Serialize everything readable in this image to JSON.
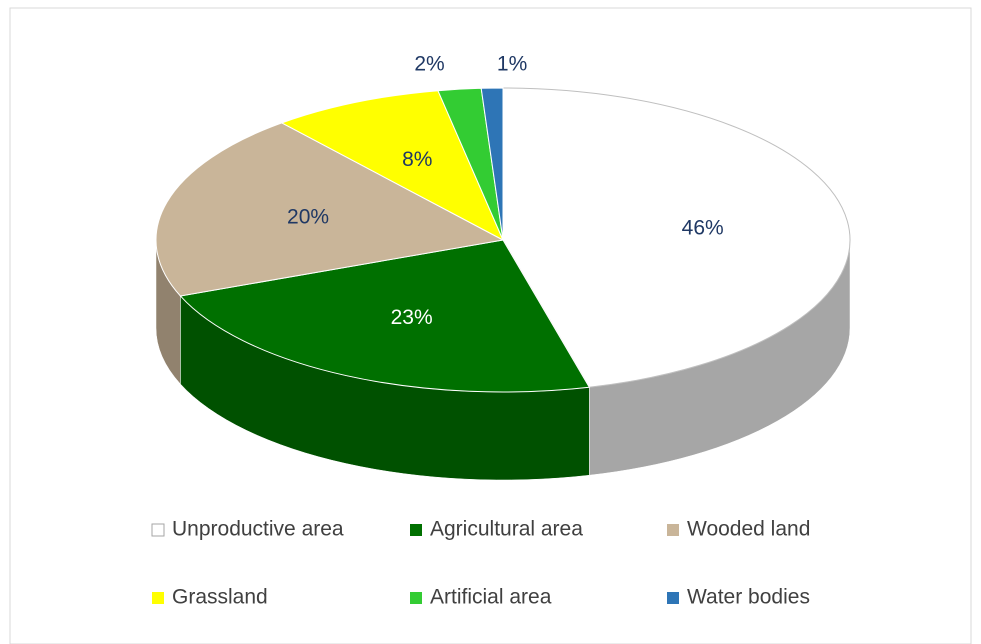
{
  "chart_data": {
    "type": "pie",
    "categories": [
      "Unproductive area",
      "Agricultural area",
      "Wooded land",
      "Grassland",
      "Artificial area",
      "Water bodies"
    ],
    "values": [
      46,
      23,
      20,
      8,
      2,
      1
    ],
    "value_labels": [
      "46%",
      "23%",
      "20%",
      "8%",
      "2%",
      "1%"
    ],
    "colors": [
      "#ffffff",
      "#007000",
      "#c9b599",
      "#ffff00",
      "#33cc33",
      "#2e75b6"
    ],
    "legend": "bottom"
  }
}
